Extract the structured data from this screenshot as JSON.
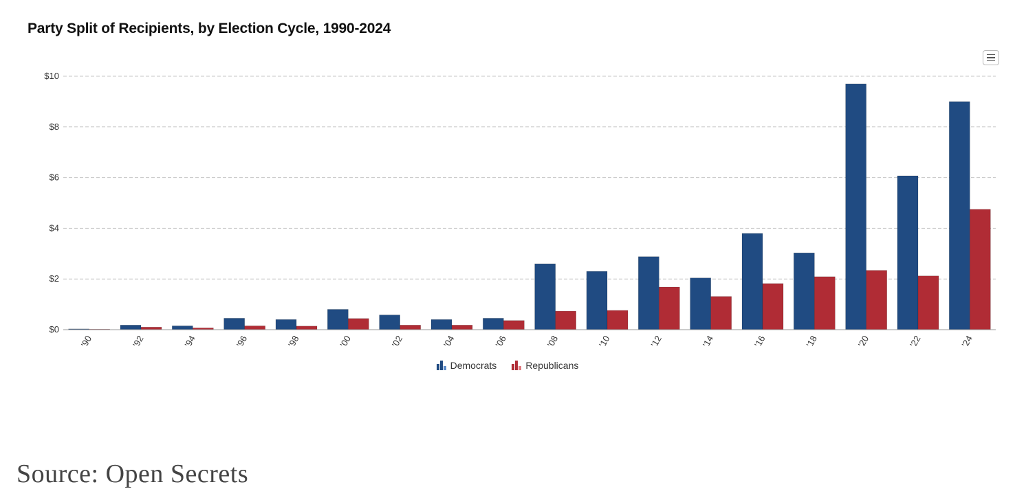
{
  "chart_data": {
    "type": "bar",
    "title": "Party Split of Recipients, by Election Cycle, 1990-2024",
    "categories": [
      "'90",
      "'92",
      "'94",
      "'96",
      "'98",
      "'00",
      "'02",
      "'04",
      "'06",
      "'08",
      "'10",
      "'12",
      "'14",
      "'16",
      "'18",
      "'20",
      "'22",
      "'24"
    ],
    "series": [
      {
        "name": "Democrats",
        "color": "#204b82",
        "values": [
          0.03,
          0.18,
          0.15,
          0.45,
          0.4,
          0.8,
          0.58,
          0.4,
          0.45,
          2.6,
          2.3,
          2.88,
          2.04,
          3.8,
          3.03,
          9.7,
          6.07,
          9.0
        ]
      },
      {
        "name": "Republicans",
        "color": "#b02c35",
        "values": [
          0.02,
          0.1,
          0.07,
          0.15,
          0.14,
          0.44,
          0.18,
          0.18,
          0.36,
          0.73,
          0.76,
          1.68,
          1.31,
          1.82,
          2.09,
          2.34,
          2.12,
          4.75
        ]
      }
    ],
    "ylim": [
      0,
      10
    ],
    "yticks": [
      "$0",
      "$2",
      "$4",
      "$6",
      "$8",
      "$10"
    ],
    "ytick_values": [
      0,
      2,
      4,
      6,
      8,
      10
    ],
    "grid": true,
    "legend": "bottom-center"
  },
  "menu": {
    "icon": "hamburger-icon"
  },
  "source": "Source: Open Secrets"
}
